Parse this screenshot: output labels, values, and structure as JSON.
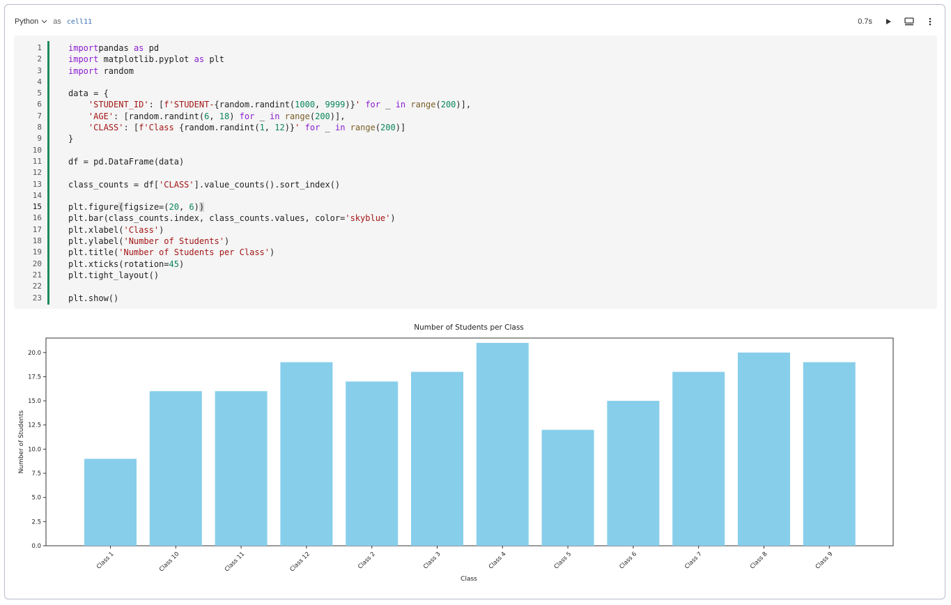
{
  "header": {
    "language": "Python",
    "as_label": "as",
    "cell_name": "cell11",
    "exec_time": "0.7s"
  },
  "code": {
    "lines": [
      {
        "n": "1",
        "tokens": [
          [
            "kw",
            "import"
          ],
          [
            "",
            "pandas "
          ],
          [
            "kw",
            "as"
          ],
          [
            "",
            " pd"
          ]
        ]
      },
      {
        "n": "2",
        "tokens": [
          [
            "kw",
            "import"
          ],
          [
            "",
            " matplotlib.pyplot "
          ],
          [
            "kw",
            "as"
          ],
          [
            "",
            " plt"
          ]
        ]
      },
      {
        "n": "3",
        "tokens": [
          [
            "kw",
            "import"
          ],
          [
            "",
            " random"
          ]
        ]
      },
      {
        "n": "4",
        "tokens": []
      },
      {
        "n": "5",
        "tokens": [
          [
            "",
            "data = {"
          ]
        ]
      },
      {
        "n": "6",
        "tokens": [
          [
            "",
            "    "
          ],
          [
            "str",
            "'STUDENT_ID'"
          ],
          [
            "",
            ": ["
          ],
          [
            "str",
            "f'STUDENT-"
          ],
          [
            "",
            "{random.randint("
          ],
          [
            "num",
            "1000"
          ],
          [
            "",
            ", "
          ],
          [
            "num",
            "9999"
          ],
          [
            "",
            ")}"
          ],
          [
            "str",
            "'"
          ],
          [
            "",
            ""
          ],
          [
            "kw",
            " for"
          ],
          [
            "",
            " _ "
          ],
          [
            "kw",
            "in"
          ],
          [
            "",
            " "
          ],
          [
            "fn",
            "range"
          ],
          [
            "",
            "("
          ],
          [
            "num",
            "200"
          ],
          [
            "",
            ")],"
          ]
        ]
      },
      {
        "n": "7",
        "tokens": [
          [
            "",
            "    "
          ],
          [
            "str",
            "'AGE'"
          ],
          [
            "",
            ": [random.randint("
          ],
          [
            "num",
            "6"
          ],
          [
            "",
            ", "
          ],
          [
            "num",
            "18"
          ],
          [
            "",
            ") "
          ],
          [
            "kw",
            "for"
          ],
          [
            "",
            " _ "
          ],
          [
            "kw",
            "in"
          ],
          [
            "",
            " "
          ],
          [
            "fn",
            "range"
          ],
          [
            "",
            "("
          ],
          [
            "num",
            "200"
          ],
          [
            "",
            ")],"
          ]
        ]
      },
      {
        "n": "8",
        "tokens": [
          [
            "",
            "    "
          ],
          [
            "str",
            "'CLASS'"
          ],
          [
            "",
            ": ["
          ],
          [
            "str",
            "f'Class "
          ],
          [
            "",
            "{random.randint("
          ],
          [
            "num",
            "1"
          ],
          [
            "",
            ", "
          ],
          [
            "num",
            "12"
          ],
          [
            "",
            ")}"
          ],
          [
            "str",
            "'"
          ],
          [
            "kw",
            " for"
          ],
          [
            "",
            " _ "
          ],
          [
            "kw",
            "in"
          ],
          [
            "",
            " "
          ],
          [
            "fn",
            "range"
          ],
          [
            "",
            "("
          ],
          [
            "num",
            "200"
          ],
          [
            "",
            ")]"
          ]
        ]
      },
      {
        "n": "9",
        "tokens": [
          [
            "",
            "}"
          ]
        ]
      },
      {
        "n": "10",
        "tokens": []
      },
      {
        "n": "11",
        "tokens": [
          [
            "",
            "df = pd.DataFrame(data)"
          ]
        ]
      },
      {
        "n": "12",
        "tokens": []
      },
      {
        "n": "13",
        "tokens": [
          [
            "",
            "class_counts = df["
          ],
          [
            "str",
            "'CLASS'"
          ],
          [
            "",
            "].value_counts().sort_index()"
          ]
        ]
      },
      {
        "n": "14",
        "tokens": []
      },
      {
        "n": "15",
        "tokens": [
          [
            "",
            "plt.figure"
          ],
          [
            "brk",
            "("
          ],
          [
            "",
            "figsize=("
          ],
          [
            "num",
            "20"
          ],
          [
            "",
            ", "
          ],
          [
            "num",
            "6"
          ],
          [
            "",
            ")"
          ],
          [
            "brk",
            ")"
          ]
        ]
      },
      {
        "n": "16",
        "tokens": [
          [
            "",
            "plt.bar(class_counts.index, class_counts.values, color="
          ],
          [
            "str",
            "'skyblue'"
          ],
          [
            "",
            ")"
          ]
        ]
      },
      {
        "n": "17",
        "tokens": [
          [
            "",
            "plt.xlabel("
          ],
          [
            "str",
            "'Class'"
          ],
          [
            "",
            ")"
          ]
        ]
      },
      {
        "n": "18",
        "tokens": [
          [
            "",
            "plt.ylabel("
          ],
          [
            "str",
            "'Number of Students'"
          ],
          [
            "",
            ")"
          ]
        ]
      },
      {
        "n": "19",
        "tokens": [
          [
            "",
            "plt.title("
          ],
          [
            "str",
            "'Number of Students per Class'"
          ],
          [
            "",
            ")"
          ]
        ]
      },
      {
        "n": "20",
        "tokens": [
          [
            "",
            "plt.xticks(rotation="
          ],
          [
            "num",
            "45"
          ],
          [
            "",
            ")"
          ]
        ]
      },
      {
        "n": "21",
        "tokens": [
          [
            "",
            "plt.tight_layout()"
          ]
        ]
      },
      {
        "n": "22",
        "tokens": []
      },
      {
        "n": "23",
        "tokens": [
          [
            "",
            "plt.show()"
          ]
        ]
      }
    ],
    "active_line": "15"
  },
  "chart_data": {
    "type": "bar",
    "title": "Number of Students per Class",
    "xlabel": "Class",
    "ylabel": "Number of Students",
    "categories": [
      "Class 1",
      "Class 10",
      "Class 11",
      "Class 12",
      "Class 2",
      "Class 3",
      "Class 4",
      "Class 5",
      "Class 6",
      "Class 7",
      "Class 8",
      "Class 9"
    ],
    "values": [
      9,
      16,
      16,
      19,
      17,
      18,
      21,
      12,
      15,
      18,
      20,
      19
    ],
    "ylim": [
      0,
      21.5
    ],
    "yticks": [
      "0.0",
      "2.5",
      "5.0",
      "7.5",
      "10.0",
      "12.5",
      "15.0",
      "17.5",
      "20.0"
    ],
    "bar_color": "#87ceeb",
    "grid": false
  }
}
